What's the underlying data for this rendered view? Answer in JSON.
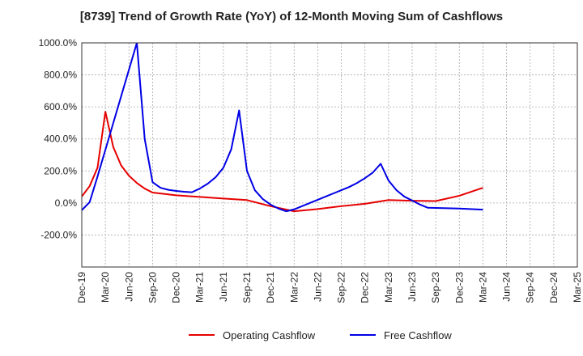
{
  "chart_data": {
    "type": "line",
    "title": "[8739]  Trend of Growth Rate (YoY) of 12-Month Moving Sum of Cashflows",
    "xlabel": "",
    "ylabel": "",
    "ylim": [
      -400,
      1000
    ],
    "y_ticks": [
      -200,
      0,
      200,
      400,
      600,
      800,
      1000
    ],
    "y_tick_labels": [
      "-200.0%",
      "0.0%",
      "200.0%",
      "400.0%",
      "600.0%",
      "800.0%",
      "1000.0%"
    ],
    "x_tick_labels": [
      "Dec-19",
      "Mar-20",
      "Jun-20",
      "Sep-20",
      "Dec-20",
      "Mar-21",
      "Jun-21",
      "Sep-21",
      "Dec-21",
      "Mar-22",
      "Jun-22",
      "Sep-22",
      "Dec-22",
      "Mar-23",
      "Jun-23",
      "Sep-23",
      "Dec-23",
      "Mar-24",
      "Jun-24",
      "Sep-24",
      "Dec-24",
      "Mar-25"
    ],
    "grid": true,
    "legend_position": "bottom",
    "series": [
      {
        "name": "Operating Cashflow",
        "color": "#e60000",
        "points": [
          [
            "Dec-19",
            40
          ],
          [
            "Jan-20",
            105
          ],
          [
            "Feb-20",
            220
          ],
          [
            "Mar-20",
            570
          ],
          [
            "Apr-20",
            350
          ],
          [
            "May-20",
            235
          ],
          [
            "Jun-20",
            170
          ],
          [
            "Jul-20",
            125
          ],
          [
            "Aug-20",
            90
          ],
          [
            "Sep-20",
            65
          ],
          [
            "Dec-20",
            48
          ],
          [
            "Mar-21",
            38
          ],
          [
            "Jun-21",
            28
          ],
          [
            "Sep-21",
            18
          ],
          [
            "Dec-21",
            -20
          ],
          [
            "Mar-22",
            -52
          ],
          [
            "Jun-22",
            -38
          ],
          [
            "Sep-22",
            -20
          ],
          [
            "Dec-22",
            -5
          ],
          [
            "Mar-23",
            18
          ],
          [
            "Jun-23",
            14
          ],
          [
            "Sep-23",
            12
          ],
          [
            "Dec-23",
            45
          ],
          [
            "Mar-24",
            95
          ]
        ]
      },
      {
        "name": "Free Cashflow",
        "color": "#0000e6",
        "points": [
          [
            "Dec-19",
            -45
          ],
          [
            "Jan-20",
            5
          ],
          [
            "Feb-20",
            165
          ],
          [
            "Jul-20",
            1000
          ],
          [
            "Aug-20",
            400
          ],
          [
            "Sep-20",
            130
          ],
          [
            "Oct-20",
            95
          ],
          [
            "Nov-20",
            82
          ],
          [
            "Dec-20",
            75
          ],
          [
            "Jan-21",
            70
          ],
          [
            "Feb-21",
            67
          ],
          [
            "Mar-21",
            90
          ],
          [
            "Apr-21",
            120
          ],
          [
            "May-21",
            160
          ],
          [
            "Jun-21",
            220
          ],
          [
            "Jul-21",
            335
          ],
          [
            "Aug-21",
            578
          ],
          [
            "Sep-21",
            200
          ],
          [
            "Oct-21",
            80
          ],
          [
            "Nov-21",
            25
          ],
          [
            "Dec-21",
            -10
          ],
          [
            "Jan-22",
            -35
          ],
          [
            "Feb-22",
            -52
          ],
          [
            "Mar-22",
            -40
          ],
          [
            "Apr-22",
            -20
          ],
          [
            "May-22",
            0
          ],
          [
            "Jun-22",
            20
          ],
          [
            "Jul-22",
            40
          ],
          [
            "Aug-22",
            60
          ],
          [
            "Sep-22",
            80
          ],
          [
            "Oct-22",
            100
          ],
          [
            "Nov-22",
            125
          ],
          [
            "Dec-22",
            155
          ],
          [
            "Jan-23",
            190
          ],
          [
            "Feb-23",
            245
          ],
          [
            "Mar-23",
            140
          ],
          [
            "Apr-23",
            80
          ],
          [
            "May-23",
            40
          ],
          [
            "Jun-23",
            15
          ],
          [
            "Jul-23",
            -10
          ],
          [
            "Aug-23",
            -30
          ],
          [
            "Dec-23",
            -35
          ],
          [
            "Mar-24",
            -42
          ]
        ]
      }
    ]
  }
}
